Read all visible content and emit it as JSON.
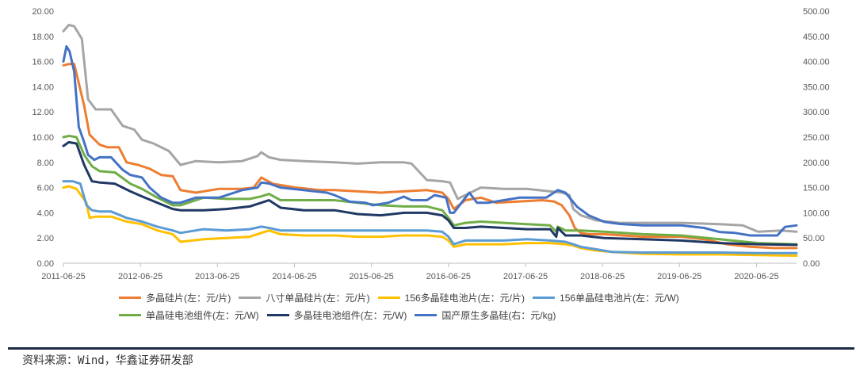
{
  "chart_data": {
    "type": "line",
    "x_ticks": [
      "2011-06-25",
      "2012-06-25",
      "2013-06-25",
      "2014-06-25",
      "2015-06-25",
      "2016-06-25",
      "2017-06-25",
      "2018-06-25",
      "2019-06-25",
      "2020-06-25"
    ],
    "y_left_ticks": [
      "0.00",
      "2.00",
      "4.00",
      "6.00",
      "8.00",
      "10.00",
      "12.00",
      "14.00",
      "16.00",
      "18.00",
      "20.00"
    ],
    "y_right_ticks": [
      "0.00",
      "50.00",
      "100.00",
      "150.00",
      "200.00",
      "250.00",
      "300.00",
      "350.00",
      "400.00",
      "450.00",
      "500.00"
    ],
    "ylim_left": [
      0,
      20
    ],
    "ylim_right": [
      0,
      500
    ],
    "xlim": [
      2011.48,
      2021.0
    ],
    "grid": false,
    "legend_position": "bottom",
    "series": [
      {
        "name": "多晶硅片(左：元/片)",
        "color": "#ED7D31",
        "axis": "left",
        "x": [
          2011.48,
          2011.55,
          2011.62,
          2011.75,
          2011.82,
          2011.95,
          2012.05,
          2012.2,
          2012.3,
          2012.45,
          2012.6,
          2012.75,
          2012.9,
          2013.0,
          2013.2,
          2013.5,
          2013.8,
          2013.95,
          2014.05,
          2014.2,
          2014.5,
          2014.8,
          2015.0,
          2015.3,
          2015.6,
          2015.9,
          2016.2,
          2016.4,
          2016.48,
          2016.55,
          2016.7,
          2016.9,
          2017.1,
          2017.4,
          2017.7,
          2017.85,
          2017.95,
          2018.05,
          2018.12,
          2018.2,
          2018.3,
          2018.5,
          2019.0,
          2019.5,
          2019.8,
          2020.1,
          2020.4,
          2020.7,
          2021.0
        ],
        "y": [
          15.7,
          15.8,
          15.8,
          12.5,
          10.2,
          9.4,
          9.2,
          9.2,
          8.0,
          7.8,
          7.5,
          7.0,
          6.9,
          5.8,
          5.6,
          5.9,
          5.9,
          6.0,
          6.8,
          6.3,
          6.0,
          5.8,
          5.8,
          5.7,
          5.6,
          5.7,
          5.8,
          5.6,
          5.1,
          4.3,
          5.0,
          5.2,
          4.8,
          4.9,
          5.0,
          4.9,
          4.6,
          3.8,
          2.8,
          2.4,
          2.3,
          2.3,
          2.1,
          2.1,
          1.9,
          1.5,
          1.3,
          1.2,
          1.2
        ]
      },
      {
        "name": "八寸单晶硅片(左：元/片)",
        "color": "#A5A5A5",
        "axis": "left",
        "x": [
          2011.48,
          2011.55,
          2011.62,
          2011.72,
          2011.8,
          2011.9,
          2012.1,
          2012.25,
          2012.4,
          2012.5,
          2012.65,
          2012.85,
          2013.0,
          2013.2,
          2013.5,
          2013.8,
          2014.0,
          2014.05,
          2014.15,
          2014.3,
          2014.6,
          2015.0,
          2015.3,
          2015.6,
          2015.9,
          2016.0,
          2016.2,
          2016.4,
          2016.5,
          2016.6,
          2016.9,
          2017.2,
          2017.5,
          2017.8,
          2017.95,
          2018.05,
          2018.1,
          2018.2,
          2018.4,
          2018.7,
          2019.0,
          2019.5,
          2020.0,
          2020.3,
          2020.5,
          2020.8,
          2021.0
        ],
        "y": [
          18.4,
          18.9,
          18.8,
          17.8,
          13.0,
          12.2,
          12.2,
          10.9,
          10.6,
          9.8,
          9.5,
          8.9,
          7.8,
          8.1,
          8.0,
          8.1,
          8.5,
          8.8,
          8.4,
          8.2,
          8.1,
          8.0,
          7.9,
          8.0,
          8.0,
          7.9,
          6.6,
          6.5,
          6.4,
          5.1,
          6.0,
          5.9,
          5.9,
          5.7,
          5.6,
          5.4,
          4.3,
          3.8,
          3.4,
          3.2,
          3.2,
          3.2,
          3.1,
          3.0,
          2.5,
          2.6,
          2.5
        ]
      },
      {
        "name": "156多晶硅电池片(左：元/片)",
        "color": "#FFC000",
        "axis": "left",
        "x": [
          2011.48,
          2011.55,
          2011.65,
          2011.78,
          2011.82,
          2011.9,
          2012.1,
          2012.3,
          2012.5,
          2012.7,
          2012.9,
          2013.0,
          2013.3,
          2013.6,
          2013.9,
          2014.05,
          2014.15,
          2014.3,
          2014.6,
          2015.0,
          2015.3,
          2015.6,
          2015.9,
          2016.2,
          2016.4,
          2016.48,
          2016.55,
          2016.7,
          2016.9,
          2017.2,
          2017.5,
          2017.8,
          2018.0,
          2018.1,
          2018.2,
          2018.4,
          2018.6,
          2019.0,
          2019.5,
          2020.0,
          2020.5,
          2021.0
        ],
        "y": [
          6.0,
          6.1,
          5.9,
          4.8,
          3.6,
          3.7,
          3.7,
          3.3,
          3.1,
          2.6,
          2.3,
          1.7,
          1.9,
          2.0,
          2.1,
          2.4,
          2.6,
          2.3,
          2.2,
          2.2,
          2.1,
          2.1,
          2.2,
          2.2,
          2.1,
          1.8,
          1.3,
          1.5,
          1.5,
          1.5,
          1.6,
          1.6,
          1.5,
          1.4,
          1.2,
          1.0,
          0.9,
          0.75,
          0.7,
          0.7,
          0.65,
          0.6
        ]
      },
      {
        "name": "156单晶硅电池片(左：元/W)",
        "color": "#5B9BD5",
        "axis": "left",
        "x": [
          2011.48,
          2011.6,
          2011.7,
          2011.78,
          2011.85,
          2011.95,
          2012.1,
          2012.3,
          2012.5,
          2012.7,
          2012.9,
          2013.0,
          2013.3,
          2013.6,
          2013.9,
          2014.05,
          2014.15,
          2014.3,
          2014.6,
          2015.0,
          2015.3,
          2015.6,
          2015.9,
          2016.2,
          2016.4,
          2016.48,
          2016.55,
          2016.7,
          2016.9,
          2017.2,
          2017.5,
          2017.8,
          2018.0,
          2018.1,
          2018.2,
          2018.4,
          2018.6,
          2019.0,
          2019.5,
          2020.0,
          2020.5,
          2021.0
        ],
        "y": [
          6.5,
          6.5,
          6.3,
          4.6,
          4.2,
          4.1,
          4.1,
          3.6,
          3.3,
          2.9,
          2.6,
          2.4,
          2.7,
          2.6,
          2.7,
          2.9,
          2.8,
          2.6,
          2.6,
          2.6,
          2.6,
          2.6,
          2.6,
          2.6,
          2.5,
          2.1,
          1.5,
          1.8,
          1.8,
          1.8,
          1.9,
          1.8,
          1.7,
          1.5,
          1.3,
          1.1,
          0.9,
          0.85,
          0.85,
          0.85,
          0.8,
          0.8
        ]
      },
      {
        "name": "单晶硅电池组件(左：元/W)",
        "color": "#70AD47",
        "axis": "left",
        "x": [
          2011.48,
          2011.55,
          2011.65,
          2011.75,
          2011.85,
          2011.95,
          2012.15,
          2012.35,
          2012.5,
          2012.7,
          2012.9,
          2013.0,
          2013.3,
          2013.6,
          2013.9,
          2014.05,
          2014.15,
          2014.3,
          2014.6,
          2015.0,
          2015.3,
          2015.6,
          2015.9,
          2016.2,
          2016.4,
          2016.48,
          2016.55,
          2016.7,
          2016.9,
          2017.2,
          2017.5,
          2017.8,
          2017.88,
          2017.9,
          2018.0,
          2018.2,
          2018.5,
          2019.0,
          2019.5,
          2020.0,
          2020.5,
          2021.0
        ],
        "y": [
          10.0,
          10.1,
          10.0,
          8.6,
          7.7,
          7.3,
          7.2,
          6.3,
          5.9,
          5.2,
          4.6,
          4.6,
          5.2,
          5.1,
          5.1,
          5.3,
          5.5,
          5.0,
          5.0,
          5.0,
          4.8,
          4.6,
          4.5,
          4.5,
          4.2,
          3.6,
          3.0,
          3.2,
          3.3,
          3.2,
          3.1,
          3.0,
          2.5,
          2.9,
          2.6,
          2.6,
          2.5,
          2.3,
          2.2,
          1.9,
          1.6,
          1.5
        ]
      },
      {
        "name": "多晶硅电池组件(左：元/W)",
        "color": "#203864",
        "axis": "left",
        "x": [
          2011.48,
          2011.55,
          2011.65,
          2011.75,
          2011.85,
          2011.95,
          2012.15,
          2012.35,
          2012.5,
          2012.7,
          2012.9,
          2013.0,
          2013.3,
          2013.6,
          2013.9,
          2014.05,
          2014.15,
          2014.3,
          2014.6,
          2015.0,
          2015.3,
          2015.6,
          2015.9,
          2016.2,
          2016.4,
          2016.48,
          2016.55,
          2016.7,
          2016.9,
          2017.2,
          2017.5,
          2017.8,
          2017.88,
          2017.9,
          2018.0,
          2018.2,
          2018.5,
          2019.0,
          2019.5,
          2020.0,
          2020.5,
          2021.0
        ],
        "y": [
          9.3,
          9.6,
          9.5,
          7.8,
          6.5,
          6.4,
          6.3,
          5.7,
          5.3,
          4.8,
          4.3,
          4.2,
          4.2,
          4.3,
          4.5,
          4.8,
          5.0,
          4.4,
          4.2,
          4.2,
          3.9,
          3.8,
          4.0,
          4.0,
          3.8,
          3.4,
          2.8,
          2.8,
          2.9,
          2.8,
          2.7,
          2.7,
          2.1,
          2.8,
          2.2,
          2.2,
          2.0,
          1.9,
          1.8,
          1.6,
          1.5,
          1.45
        ]
      },
      {
        "name": "国产原生多晶硅(右：元/kg)",
        "color": "#4472C4",
        "axis": "right",
        "x": [
          2011.48,
          2011.52,
          2011.56,
          2011.62,
          2011.68,
          2011.75,
          2011.8,
          2011.88,
          2011.95,
          2012.1,
          2012.25,
          2012.35,
          2012.5,
          2012.6,
          2012.75,
          2012.9,
          2013.0,
          2013.2,
          2013.5,
          2013.8,
          2014.0,
          2014.05,
          2014.15,
          2014.3,
          2014.6,
          2014.9,
          2015.0,
          2015.2,
          2015.4,
          2015.5,
          2015.7,
          2015.9,
          2016.0,
          2016.2,
          2016.3,
          2016.45,
          2016.5,
          2016.55,
          2016.65,
          2016.75,
          2016.85,
          2017.0,
          2017.2,
          2017.4,
          2017.6,
          2017.75,
          2017.85,
          2017.9,
          2018.0,
          2018.15,
          2018.3,
          2018.5,
          2018.7,
          2019.0,
          2019.5,
          2019.8,
          2020.0,
          2020.2,
          2020.4,
          2020.6,
          2020.75,
          2020.85,
          2021.0
        ],
        "y": [
          400,
          430,
          420,
          380,
          270,
          240,
          215,
          205,
          210,
          210,
          185,
          175,
          170,
          150,
          130,
          120,
          120,
          130,
          130,
          145,
          150,
          160,
          158,
          150,
          145,
          140,
          135,
          122,
          120,
          115,
          120,
          132,
          125,
          125,
          135,
          130,
          100,
          100,
          120,
          140,
          120,
          120,
          125,
          130,
          130,
          130,
          140,
          145,
          140,
          112,
          95,
          82,
          78,
          75,
          75,
          70,
          62,
          60,
          55,
          55,
          55,
          72,
          75
        ]
      }
    ]
  },
  "source": "资料来源：Wind，华鑫证券研发部"
}
